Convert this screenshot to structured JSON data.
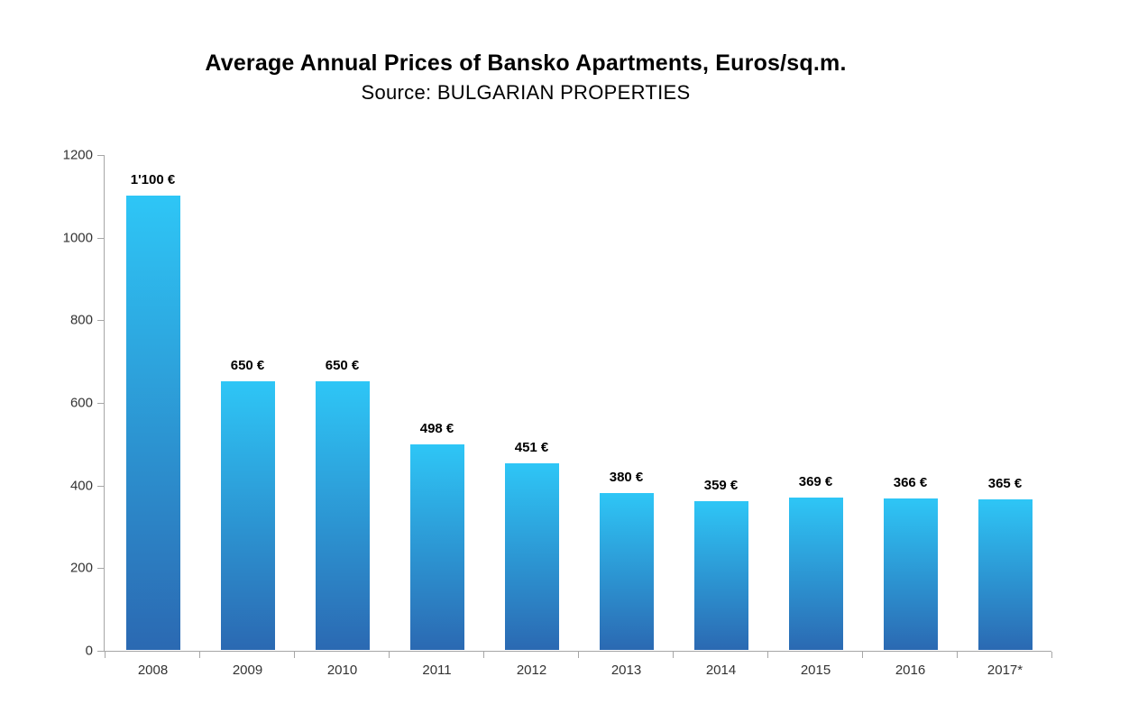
{
  "chart_data": {
    "type": "bar",
    "title": "Average Annual Prices of Bansko Apartments, Euros/sq.m.",
    "subtitle": "Source: BULGARIAN PROPERTIES",
    "categories": [
      "2008",
      "2009",
      "2010",
      "2011",
      "2012",
      "2013",
      "2014",
      "2015",
      "2016",
      "2017*"
    ],
    "values": [
      1100,
      650,
      650,
      498,
      451,
      380,
      359,
      369,
      366,
      365
    ],
    "data_labels": [
      "1'100 €",
      "650 €",
      "650 €",
      "498 €",
      "451 €",
      "380 €",
      "359 €",
      "369 €",
      "366 €",
      "365 €"
    ],
    "xlabel": "",
    "ylabel": "",
    "ylim": [
      0,
      1200
    ],
    "yticks": [
      0,
      200,
      400,
      600,
      800,
      1000,
      1200
    ],
    "grid": false,
    "legend": "none",
    "colors": {
      "bar_gradient_top": "#2ec6f6",
      "bar_gradient_bottom": "#2b69b2",
      "axis_line": "#a6a6a6",
      "axis_label_text": "#333333",
      "value_label_text": "#000000",
      "background": "#ffffff"
    }
  }
}
